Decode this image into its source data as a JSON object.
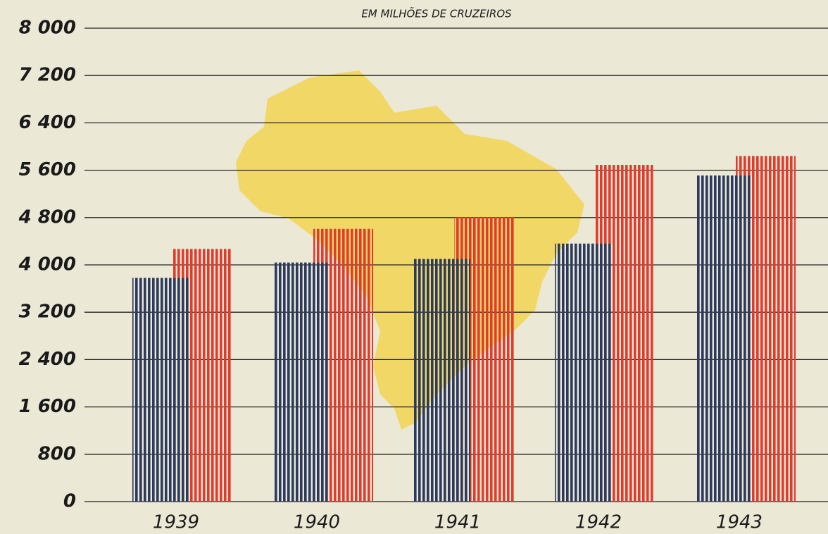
{
  "chart_data": {
    "type": "bar",
    "title": "EM MILHÕES DE CRUZEIROS",
    "categories": [
      "1939",
      "1940",
      "1941",
      "1942",
      "1943"
    ],
    "series": [
      {
        "color": "#2b3a5e",
        "values": [
          3780,
          4040,
          4100,
          4360,
          5510
        ]
      },
      {
        "color": "#e23b2e",
        "values": [
          4270,
          4610,
          4810,
          5690,
          5840
        ]
      }
    ],
    "ylim": [
      0,
      8000
    ],
    "yticks": [
      0,
      800,
      {
        "value": 1600,
        "label": "1 600"
      },
      {
        "value": 2400,
        "label": "2 400"
      },
      {
        "value": 3200,
        "label": "3 200"
      },
      {
        "value": 4000,
        "label": "4 000"
      },
      {
        "value": 4800,
        "label": "4 800"
      },
      {
        "value": 5600,
        "label": "5 600"
      },
      {
        "value": 6400,
        "label": "6 400"
      },
      {
        "value": 7200,
        "label": "7 200"
      },
      {
        "value": 8000,
        "label": "8 000"
      }
    ],
    "grid": true
  }
}
